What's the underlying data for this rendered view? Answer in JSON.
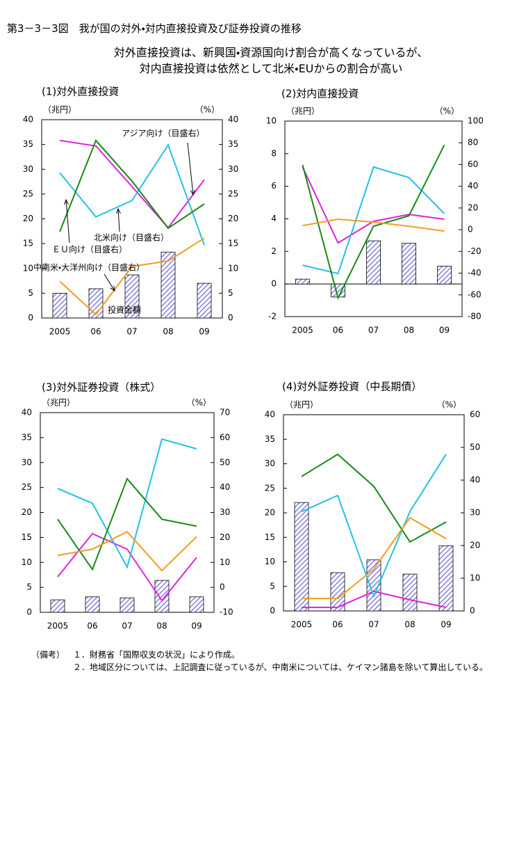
{
  "title": "第3－3－3図　我が国の対外・対内直接投資及び証券投資の推移",
  "subtitle": [
    "対外直接投資は、新興国・資源国向け割合が高くなっているが、",
    "対内直接投資は依然として北米・EUからの割合が高い"
  ],
  "chart_data": [
    {
      "type": "combo",
      "title": "(1)対外直接投資",
      "ylabel": "（兆円）",
      "y2label": "（%）",
      "categories": [
        "2005",
        "06",
        "07",
        "08",
        "09"
      ],
      "ylim": [
        0,
        40
      ],
      "yticks": [
        0,
        5,
        10,
        15,
        20,
        25,
        30,
        35,
        40
      ],
      "y2lim": [
        0,
        40
      ],
      "y2ticks": [
        0,
        5,
        10,
        15,
        20,
        25,
        30,
        35,
        40
      ],
      "series": [
        {
          "name": "投資金額",
          "type": "bar",
          "color": "#6f6fd8",
          "values": [
            5.0,
            5.9,
            8.7,
            13.3,
            7.0
          ]
        },
        {
          "name": "アジア向け（目盛右）",
          "type": "line",
          "axis": "y2",
          "color": "#e020e0",
          "values": [
            35.8,
            34.7,
            26.5,
            18.2,
            27.9
          ]
        },
        {
          "name": "北米向け（目盛右）",
          "type": "line",
          "axis": "y2",
          "color": "#22c0ea",
          "values": [
            29.3,
            20.4,
            23.7,
            34.9,
            14.7
          ]
        },
        {
          "name": "ＥＵ向け（目盛右）",
          "type": "line",
          "axis": "y2",
          "color": "#168a16",
          "values": [
            17.4,
            35.8,
            27.6,
            18.1,
            23.0
          ]
        },
        {
          "name": "中南米・大洋州向け（目盛右）",
          "type": "line",
          "axis": "y2",
          "color": "#f29b1c",
          "values": [
            7.4,
            0.7,
            10.4,
            11.5,
            16.1
          ]
        }
      ]
    },
    {
      "type": "combo",
      "title": "(2)対内直接投資",
      "ylabel": "（兆円）",
      "y2label": "（%）",
      "categories": [
        "2005",
        "06",
        "07",
        "08",
        "09"
      ],
      "ylim": [
        -2,
        10
      ],
      "yticks": [
        -2,
        0,
        2,
        4,
        6,
        8,
        10
      ],
      "y2lim": [
        -80,
        100
      ],
      "y2ticks": [
        -80,
        -60,
        -40,
        -20,
        0,
        20,
        40,
        60,
        80,
        100
      ],
      "series": [
        {
          "type": "bar",
          "color": "#6f6fd8",
          "values": [
            0.3,
            -0.8,
            2.65,
            2.5,
            1.1
          ]
        },
        {
          "type": "line",
          "axis": "y2",
          "color": "#e020e0",
          "values": [
            57.7,
            -12.2,
            7.7,
            14.1,
            9.6
          ]
        },
        {
          "type": "line",
          "axis": "y2",
          "color": "#22c0ea",
          "values": [
            -32.7,
            -40.4,
            57.7,
            48.0,
            14.7
          ]
        },
        {
          "type": "line",
          "axis": "y2",
          "color": "#168a16",
          "values": [
            59.6,
            -62.8,
            3.2,
            12.8,
            78.0
          ]
        },
        {
          "type": "line",
          "axis": "y2",
          "color": "#f29b1c",
          "values": [
            3.8,
            9.6,
            7.0,
            3.2,
            -1.3
          ]
        }
      ]
    },
    {
      "type": "combo",
      "title": "(3)対外証券投資（株式）",
      "ylabel": "（兆円）",
      "y2label": "（%）",
      "categories": [
        "2005",
        "06",
        "07",
        "08",
        "09"
      ],
      "ylim": [
        0,
        40
      ],
      "yticks": [
        0,
        5,
        10,
        15,
        20,
        25,
        30,
        35,
        40
      ],
      "y2lim": [
        -10,
        70
      ],
      "y2ticks": [
        -10,
        0,
        10,
        20,
        30,
        40,
        50,
        60,
        70
      ],
      "series": [
        {
          "type": "bar",
          "color": "#6f6fd8",
          "values": [
            2.5,
            3.1,
            2.9,
            6.4,
            3.1
          ]
        },
        {
          "type": "line",
          "axis": "y2",
          "color": "#e020e0",
          "values": [
            4.2,
            21.5,
            15.3,
            -5.3,
            12.0
          ]
        },
        {
          "type": "line",
          "axis": "y2",
          "color": "#22c0ea",
          "values": [
            39.6,
            33.7,
            8.1,
            59.4,
            55.5
          ]
        },
        {
          "type": "line",
          "axis": "y2",
          "color": "#168a16",
          "values": [
            27.3,
            7.2,
            43.5,
            27.3,
            24.5
          ]
        },
        {
          "type": "line",
          "axis": "y2",
          "color": "#f29b1c",
          "values": [
            12.8,
            15.3,
            22.3,
            6.7,
            20.3
          ]
        }
      ]
    },
    {
      "type": "combo",
      "title": "(4)対外証券投資（中長期債）",
      "ylabel": "（兆円）",
      "y2label": "（%）",
      "categories": [
        "2005",
        "06",
        "07",
        "08",
        "09"
      ],
      "ylim": [
        0,
        40
      ],
      "yticks": [
        0,
        5,
        10,
        15,
        20,
        25,
        30,
        35,
        40
      ],
      "y2lim": [
        0,
        60
      ],
      "y2ticks": [
        0,
        10,
        20,
        30,
        40,
        50,
        60
      ],
      "series": [
        {
          "type": "bar",
          "color": "#6f6fd8",
          "values": [
            22.1,
            7.8,
            10.4,
            7.5,
            13.3
          ]
        },
        {
          "type": "line",
          "axis": "y2",
          "color": "#e020e0",
          "values": [
            1.1,
            1.1,
            6.0,
            3.4,
            1.1
          ]
        },
        {
          "type": "line",
          "axis": "y2",
          "color": "#22c0ea",
          "values": [
            30.4,
            35.3,
            4.5,
            30.4,
            47.9
          ]
        },
        {
          "type": "line",
          "axis": "y2",
          "color": "#168a16",
          "values": [
            41.1,
            47.9,
            38.1,
            21.1,
            27.2
          ]
        },
        {
          "type": "line",
          "axis": "y2",
          "color": "#f29b1c",
          "values": [
            3.8,
            3.8,
            12.8,
            28.5,
            22.1
          ]
        }
      ]
    }
  ],
  "notes": {
    "label": "（備考）",
    "items": [
      "１．財務省「国際収支の状況」により作成。",
      "２．地域区分については、上記調査に従っているが、中南米については、ケイマン諸島を除いて算出している。"
    ]
  }
}
